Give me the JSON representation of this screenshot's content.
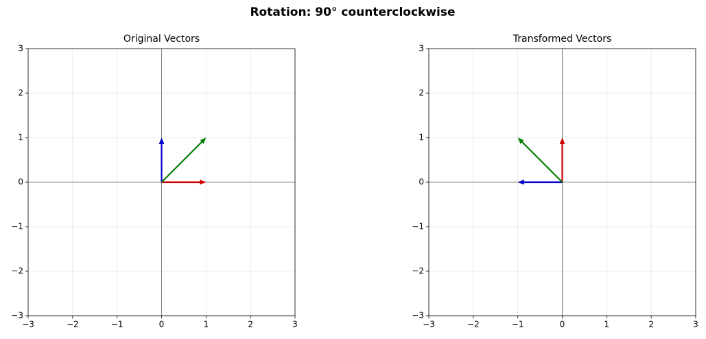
{
  "title": "Rotation: 90° counterclockwise",
  "chart_data": [
    {
      "type": "quiver",
      "title": "Original Vectors",
      "vectors": [
        {
          "color": "#cc0000",
          "x": 1,
          "y": 0
        },
        {
          "color": "#0000cc",
          "x": 0,
          "y": 1
        },
        {
          "color": "#008000",
          "x": 1,
          "y": 1
        }
      ],
      "xlim": [
        -3,
        3
      ],
      "ylim": [
        -3,
        3
      ],
      "xticks": [
        {
          "value": -3,
          "label": "−3"
        },
        {
          "value": -2,
          "label": "−2"
        },
        {
          "value": -1,
          "label": "−1"
        },
        0,
        1,
        2,
        3
      ],
      "yticks": [
        {
          "value": -3,
          "label": "−3"
        },
        {
          "value": -2,
          "label": "−2"
        },
        {
          "value": -1,
          "label": "−1"
        },
        0,
        1,
        2,
        3
      ],
      "grid": true
    },
    {
      "type": "quiver",
      "title": "Transformed Vectors",
      "vectors": [
        {
          "color": "#cc0000",
          "x": 0,
          "y": 1
        },
        {
          "color": "#0000cc",
          "x": -1,
          "y": 0
        },
        {
          "color": "#008000",
          "x": -1,
          "y": 1
        }
      ],
      "xlim": [
        -3,
        3
      ],
      "ylim": [
        -3,
        3
      ],
      "xticks": [
        {
          "value": -3,
          "label": "−3"
        },
        {
          "value": -2,
          "label": "−2"
        },
        {
          "value": -1,
          "label": "−1"
        },
        0,
        1,
        2,
        3
      ],
      "yticks": [
        {
          "value": -3,
          "label": "−3"
        },
        {
          "value": -2,
          "label": "−2"
        },
        {
          "value": -1,
          "label": "−1"
        },
        0,
        1,
        2,
        3
      ],
      "grid": true
    }
  ]
}
